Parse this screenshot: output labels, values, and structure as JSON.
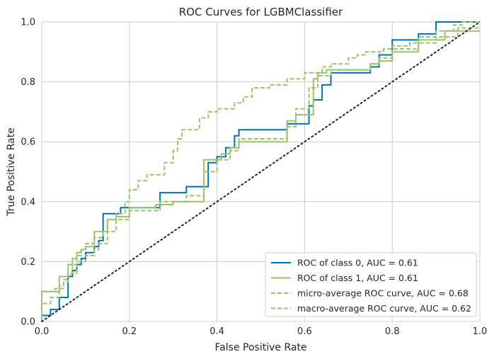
{
  "chart_data": {
    "type": "line",
    "title": "ROC Curves for LGBMClassifier",
    "xlabel": "False Positive Rate",
    "ylabel": "True Positive Rate",
    "xlim": [
      0,
      1
    ],
    "ylim": [
      0,
      1
    ],
    "xticks": [
      "0.0",
      "0.2",
      "0.4",
      "0.6",
      "0.8",
      "1.0"
    ],
    "yticks": [
      "0.0",
      "0.2",
      "0.4",
      "0.6",
      "0.8",
      "1.0"
    ],
    "grid": true,
    "legend_position": "lower-right",
    "series": [
      {
        "name": "ROC of class 0, AUC = 0.61",
        "color": "#0072B2",
        "style": "solid",
        "x": [
          0,
          0,
          0.02,
          0.02,
          0.04,
          0.04,
          0.06,
          0.06,
          0.07,
          0.07,
          0.08,
          0.08,
          0.09,
          0.09,
          0.1,
          0.1,
          0.12,
          0.12,
          0.13,
          0.13,
          0.14,
          0.14,
          0.18,
          0.18,
          0.27,
          0.27,
          0.33,
          0.33,
          0.38,
          0.38,
          0.4,
          0.4,
          0.42,
          0.42,
          0.44,
          0.44,
          0.45,
          0.45,
          0.56,
          0.56,
          0.61,
          0.61,
          0.62,
          0.62,
          0.64,
          0.64,
          0.66,
          0.66,
          0.75,
          0.75,
          0.77,
          0.77,
          0.8,
          0.8,
          0.86,
          0.86,
          0.9,
          0.9,
          1.0
        ],
        "y": [
          0,
          0.02,
          0.02,
          0.04,
          0.04,
          0.08,
          0.08,
          0.15,
          0.15,
          0.17,
          0.17,
          0.19,
          0.19,
          0.21,
          0.21,
          0.23,
          0.23,
          0.25,
          0.25,
          0.27,
          0.27,
          0.36,
          0.36,
          0.38,
          0.38,
          0.43,
          0.43,
          0.45,
          0.45,
          0.53,
          0.53,
          0.55,
          0.55,
          0.58,
          0.58,
          0.62,
          0.62,
          0.64,
          0.64,
          0.66,
          0.66,
          0.72,
          0.72,
          0.74,
          0.74,
          0.79,
          0.79,
          0.83,
          0.83,
          0.85,
          0.85,
          0.89,
          0.89,
          0.94,
          0.94,
          0.96,
          0.96,
          1.0,
          1.0
        ]
      },
      {
        "name": "ROC of class 1, AUC = 0.61",
        "color": "#9BC46A",
        "style": "solid",
        "x": [
          0,
          0,
          0.04,
          0.04,
          0.06,
          0.06,
          0.07,
          0.07,
          0.08,
          0.08,
          0.09,
          0.09,
          0.1,
          0.1,
          0.12,
          0.12,
          0.15,
          0.15,
          0.17,
          0.17,
          0.2,
          0.2,
          0.26,
          0.26,
          0.3,
          0.3,
          0.37,
          0.37,
          0.41,
          0.41,
          0.43,
          0.43,
          0.45,
          0.45,
          0.56,
          0.56,
          0.58,
          0.58,
          0.62,
          0.62,
          0.63,
          0.63,
          0.65,
          0.65,
          0.75,
          0.75,
          0.77,
          0.77,
          0.8,
          0.8,
          0.86,
          0.86,
          0.92,
          0.92,
          1.0
        ],
        "y": [
          0,
          0.1,
          0.1,
          0.15,
          0.15,
          0.19,
          0.19,
          0.21,
          0.21,
          0.23,
          0.23,
          0.24,
          0.24,
          0.25,
          0.25,
          0.3,
          0.3,
          0.34,
          0.34,
          0.35,
          0.35,
          0.38,
          0.38,
          0.39,
          0.39,
          0.4,
          0.4,
          0.54,
          0.54,
          0.56,
          0.56,
          0.58,
          0.58,
          0.6,
          0.6,
          0.67,
          0.67,
          0.69,
          0.69,
          0.81,
          0.81,
          0.83,
          0.83,
          0.84,
          0.84,
          0.86,
          0.86,
          0.87,
          0.87,
          0.9,
          0.9,
          0.94,
          0.94,
          0.97,
          0.97
        ]
      },
      {
        "name": "micro-average ROC curve, AUC = 0.68",
        "color": "#9BC46A",
        "style": "dashed",
        "x": [
          0,
          0,
          0.02,
          0.02,
          0.04,
          0.04,
          0.05,
          0.05,
          0.06,
          0.06,
          0.07,
          0.07,
          0.08,
          0.08,
          0.09,
          0.09,
          0.1,
          0.1,
          0.12,
          0.12,
          0.14,
          0.14,
          0.15,
          0.15,
          0.17,
          0.17,
          0.19,
          0.19,
          0.2,
          0.2,
          0.22,
          0.22,
          0.24,
          0.24,
          0.28,
          0.28,
          0.3,
          0.3,
          0.31,
          0.31,
          0.32,
          0.32,
          0.36,
          0.36,
          0.38,
          0.38,
          0.4,
          0.4,
          0.44,
          0.44,
          0.46,
          0.46,
          0.48,
          0.48,
          0.52,
          0.52,
          0.56,
          0.56,
          0.6,
          0.6,
          0.64,
          0.64,
          0.66,
          0.66,
          0.7,
          0.7,
          0.72,
          0.72,
          0.74,
          0.74,
          0.78,
          0.78,
          0.8,
          0.8,
          0.84,
          0.84,
          0.86,
          0.86,
          0.9,
          0.9,
          0.94,
          0.94,
          0.96,
          0.96,
          1.0
        ],
        "y": [
          0,
          0.06,
          0.06,
          0.08,
          0.08,
          0.12,
          0.12,
          0.14,
          0.14,
          0.16,
          0.16,
          0.19,
          0.19,
          0.22,
          0.22,
          0.24,
          0.24,
          0.26,
          0.26,
          0.28,
          0.28,
          0.3,
          0.3,
          0.34,
          0.34,
          0.36,
          0.36,
          0.4,
          0.4,
          0.44,
          0.44,
          0.47,
          0.47,
          0.49,
          0.49,
          0.53,
          0.53,
          0.57,
          0.57,
          0.61,
          0.61,
          0.64,
          0.64,
          0.68,
          0.68,
          0.7,
          0.7,
          0.71,
          0.71,
          0.73,
          0.73,
          0.75,
          0.75,
          0.78,
          0.78,
          0.79,
          0.79,
          0.81,
          0.81,
          0.83,
          0.83,
          0.85,
          0.85,
          0.86,
          0.86,
          0.88,
          0.88,
          0.89,
          0.89,
          0.9,
          0.9,
          0.91,
          0.91,
          0.92,
          0.92,
          0.93,
          0.93,
          0.95,
          0.95,
          0.97,
          0.97,
          0.99,
          0.99,
          1.0,
          1.0
        ]
      },
      {
        "name": "macro-average ROC curve, AUC = 0.62",
        "color": "#9BC46A",
        "style": "dashed",
        "x": [
          0,
          0,
          0.03,
          0.03,
          0.05,
          0.05,
          0.06,
          0.06,
          0.08,
          0.08,
          0.1,
          0.1,
          0.12,
          0.12,
          0.13,
          0.13,
          0.15,
          0.15,
          0.17,
          0.17,
          0.2,
          0.2,
          0.27,
          0.27,
          0.33,
          0.33,
          0.37,
          0.37,
          0.4,
          0.4,
          0.43,
          0.43,
          0.45,
          0.45,
          0.56,
          0.56,
          0.58,
          0.58,
          0.61,
          0.61,
          0.63,
          0.63,
          0.66,
          0.66,
          0.75,
          0.75,
          0.77,
          0.77,
          0.8,
          0.8,
          0.86,
          0.86,
          0.9,
          0.9,
          0.95,
          0.95,
          1.0
        ],
        "y": [
          0,
          0.1,
          0.1,
          0.11,
          0.11,
          0.13,
          0.13,
          0.16,
          0.16,
          0.2,
          0.2,
          0.22,
          0.22,
          0.24,
          0.24,
          0.26,
          0.26,
          0.3,
          0.3,
          0.34,
          0.34,
          0.37,
          0.37,
          0.4,
          0.4,
          0.42,
          0.42,
          0.5,
          0.5,
          0.54,
          0.54,
          0.57,
          0.57,
          0.61,
          0.61,
          0.65,
          0.65,
          0.71,
          0.71,
          0.78,
          0.78,
          0.82,
          0.82,
          0.84,
          0.84,
          0.86,
          0.86,
          0.88,
          0.88,
          0.91,
          0.91,
          0.93,
          0.93,
          0.95,
          0.95,
          0.98,
          0.98
        ]
      }
    ],
    "baseline": {
      "x": [
        0,
        1
      ],
      "y": [
        0,
        1
      ],
      "color": "#222222",
      "style": "dotted"
    }
  }
}
